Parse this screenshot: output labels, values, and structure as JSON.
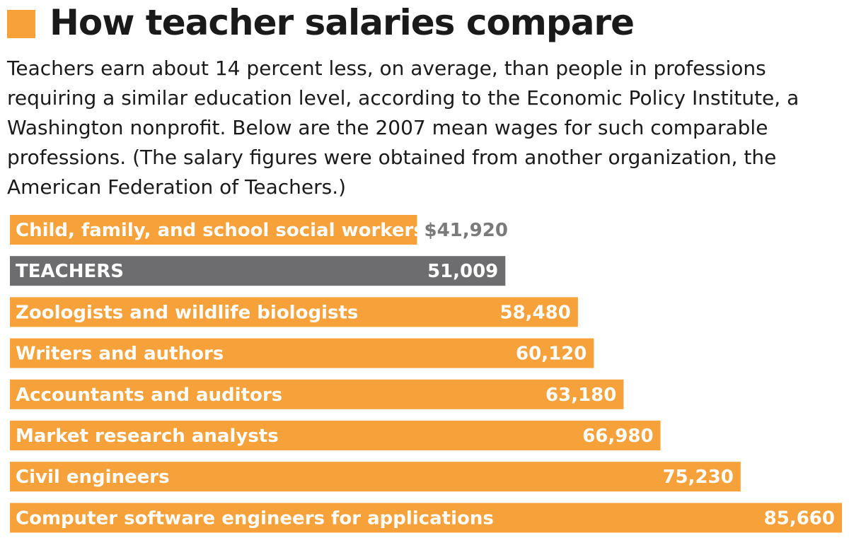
{
  "colors": {
    "accent": "#f7a13a",
    "highlight": "#6d6d6f",
    "text": "#1a1a1a",
    "outside_value": "#7a7a7a"
  },
  "chart_data": {
    "type": "bar",
    "orientation": "horizontal",
    "title": "How teacher salaries compare",
    "subtitle": "Teachers earn about 14 percent less, on average, than people in professions requiring a similar education level, according to the Economic Policy Institute, a Washington nonprofit. Below are the 2007 mean wages for such comparable professions. (The salary figures were obtained from another organization, the American Federation of Teachers.)",
    "categories": [
      "Child, family, and school social workers",
      "TEACHERS",
      "Zoologists and wildlife biologists",
      "Writers and authors",
      "Accountants and auditors",
      "Market research analysts",
      "Civil engineers",
      "Computer software engineers for applications"
    ],
    "values": [
      41920,
      51009,
      58480,
      60120,
      63180,
      66980,
      75230,
      85660
    ],
    "value_labels": [
      "$41,920",
      "51,009",
      "58,480",
      "60,120",
      "63,180",
      "66,980",
      "75,230",
      "85,660"
    ],
    "highlighted_category": "TEACHERS",
    "xlim": [
      0,
      85660
    ],
    "grid": false,
    "legend": "none"
  }
}
